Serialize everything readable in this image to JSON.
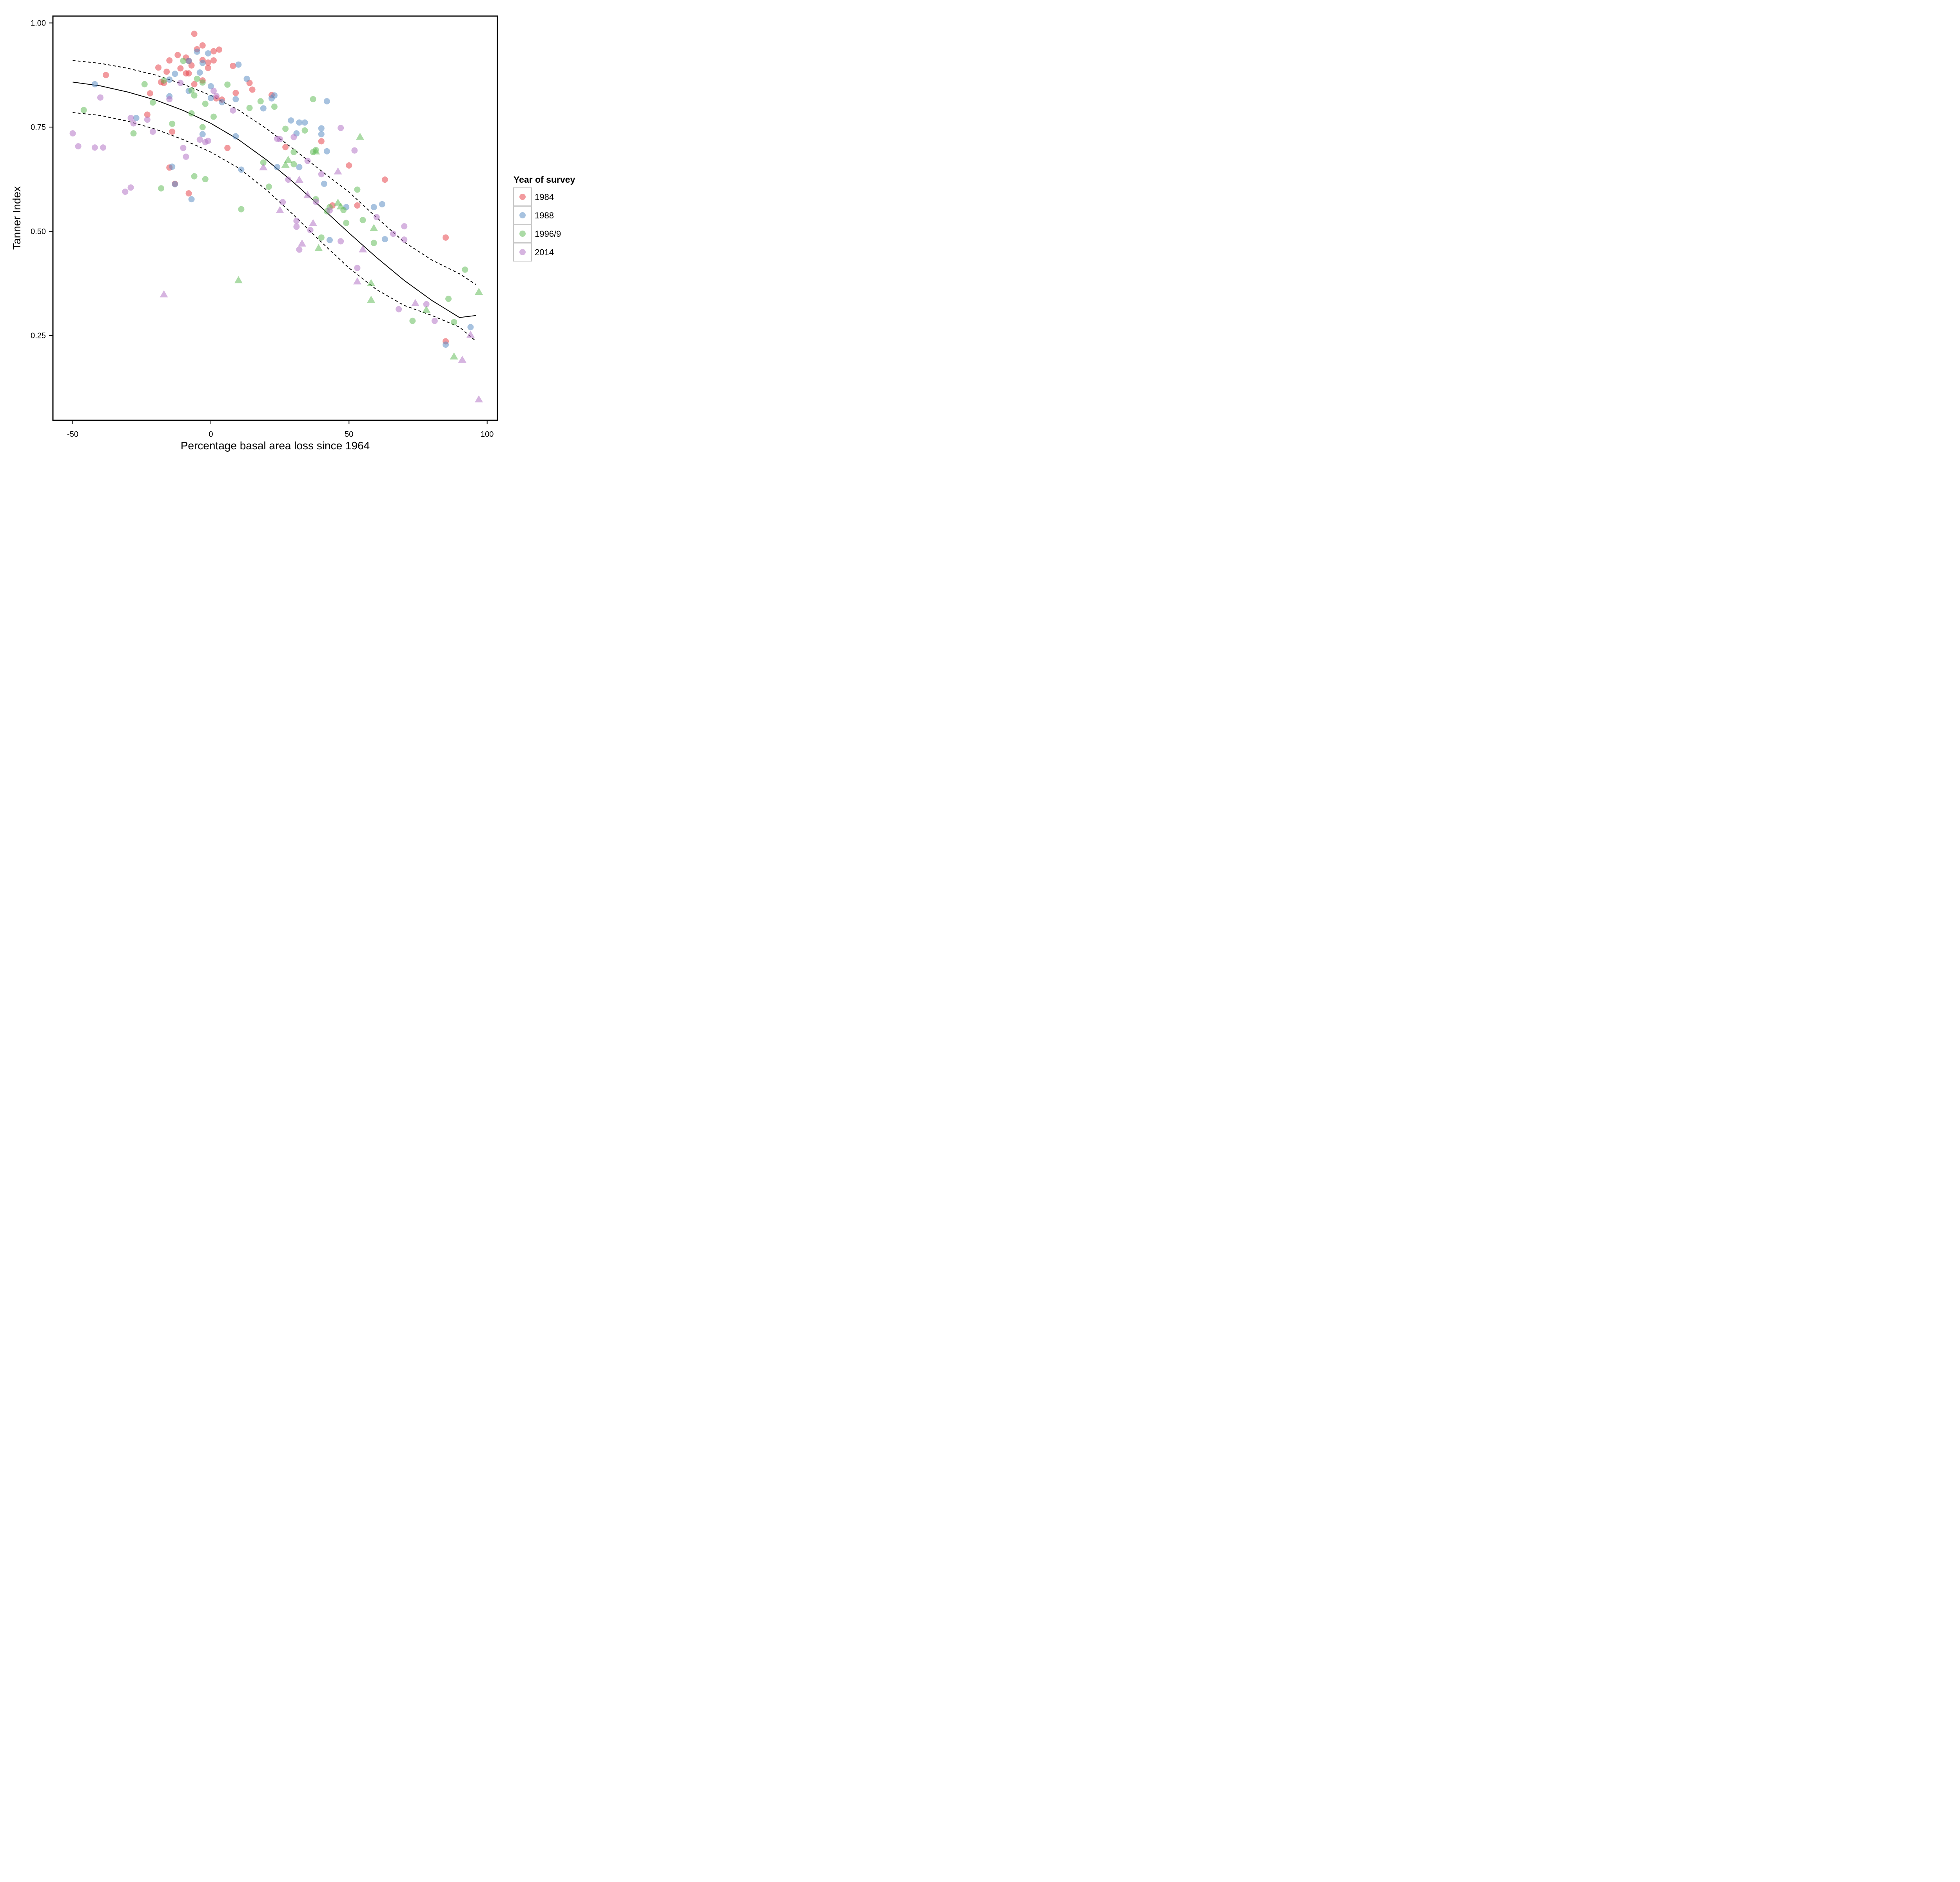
{
  "chart_data": {
    "type": "scatter",
    "title": "",
    "xlabel": "Percentage basal area loss since 1964",
    "ylabel": "Tanner Index",
    "xlim": [
      -57,
      103
    ],
    "ylim": [
      0.07,
      1.04
    ],
    "xticks": [
      -50,
      0,
      50,
      100
    ],
    "xtick_labels": [
      "-50",
      "0",
      "50",
      "100"
    ],
    "yticks": [
      0.25,
      0.5,
      0.75,
      1.0
    ],
    "ytick_labels": [
      "0.25",
      "0.50",
      "0.75",
      "1.00"
    ],
    "grid": false,
    "legend": {
      "title": "Year of survey",
      "position": "right",
      "entries": [
        "1984",
        "1988",
        "1996/9",
        "2014"
      ]
    },
    "colors": {
      "1984": "#e8474e",
      "1988": "#5f8fc4",
      "1996/9": "#66bd5c",
      "2014": "#b476c6"
    },
    "marker_alpha": 0.55,
    "series": [
      {
        "name": "1984",
        "marker": "circle",
        "points": [
          [
            -38,
            0.875
          ],
          [
            -22,
            0.831
          ],
          [
            -23,
            0.78
          ],
          [
            -19,
            0.893
          ],
          [
            -18,
            0.858
          ],
          [
            -17,
            0.856
          ],
          [
            -16,
            0.883
          ],
          [
            -15,
            0.91
          ],
          [
            -14,
            0.739
          ],
          [
            -15,
            0.653
          ],
          [
            -13,
            0.614
          ],
          [
            -12,
            0.923
          ],
          [
            -11,
            0.891
          ],
          [
            -9,
            0.917
          ],
          [
            -9,
            0.879
          ],
          [
            -8,
            0.879
          ],
          [
            -8,
            0.909
          ],
          [
            -7,
            0.898
          ],
          [
            -8,
            0.591
          ],
          [
            -6,
            0.853
          ],
          [
            -6,
            0.974
          ],
          [
            -5,
            0.937
          ],
          [
            -3,
            0.946
          ],
          [
            -3,
            0.911
          ],
          [
            -3,
            0.862
          ],
          [
            -1,
            0.905
          ],
          [
            -1,
            0.892
          ],
          [
            1,
            0.932
          ],
          [
            1,
            0.91
          ],
          [
            2,
            0.819
          ],
          [
            3,
            0.936
          ],
          [
            4,
            0.816
          ],
          [
            6,
            0.7
          ],
          [
            8,
            0.897
          ],
          [
            9,
            0.832
          ],
          [
            14,
            0.856
          ],
          [
            15,
            0.84
          ],
          [
            22,
            0.827
          ],
          [
            27,
            0.702
          ],
          [
            40,
            0.716
          ],
          [
            44,
            0.562
          ],
          [
            50,
            0.658
          ],
          [
            53,
            0.562
          ],
          [
            63,
            0.624
          ],
          [
            85,
            0.485
          ],
          [
            85,
            0.236
          ]
        ]
      },
      {
        "name": "1988",
        "marker": "circle",
        "points": [
          [
            -42,
            0.853
          ],
          [
            -27,
            0.772
          ],
          [
            -15,
            0.864
          ],
          [
            -15,
            0.824
          ],
          [
            -14,
            0.655
          ],
          [
            -13,
            0.878
          ],
          [
            -13,
            0.613
          ],
          [
            -8,
            0.909
          ],
          [
            -8,
            0.837
          ],
          [
            -7,
            0.577
          ],
          [
            -5,
            0.931
          ],
          [
            -4,
            0.881
          ],
          [
            -3,
            0.904
          ],
          [
            -3,
            0.733
          ],
          [
            -1,
            0.927
          ],
          [
            0,
            0.848
          ],
          [
            0,
            0.82
          ],
          [
            4,
            0.81
          ],
          [
            9,
            0.817
          ],
          [
            9,
            0.728
          ],
          [
            10,
            0.9
          ],
          [
            11,
            0.648
          ],
          [
            13,
            0.866
          ],
          [
            19,
            0.795
          ],
          [
            22,
            0.819
          ],
          [
            23,
            0.826
          ],
          [
            24,
            0.654
          ],
          [
            29,
            0.766
          ],
          [
            31,
            0.735
          ],
          [
            32,
            0.761
          ],
          [
            32,
            0.654
          ],
          [
            34,
            0.761
          ],
          [
            40,
            0.747
          ],
          [
            40,
            0.733
          ],
          [
            41,
            0.614
          ],
          [
            42,
            0.812
          ],
          [
            42,
            0.692
          ],
          [
            43,
            0.479
          ],
          [
            49,
            0.558
          ],
          [
            59,
            0.558
          ],
          [
            62,
            0.565
          ],
          [
            63,
            0.481
          ],
          [
            85,
            0.228
          ],
          [
            94,
            0.27
          ]
        ]
      },
      {
        "name": "1996/9",
        "marker": "circle",
        "points": [
          [
            -46,
            0.791
          ],
          [
            -24,
            0.853
          ],
          [
            -28,
            0.735
          ],
          [
            -21,
            0.809
          ],
          [
            -18,
            0.603
          ],
          [
            -17,
            0.862
          ],
          [
            -14,
            0.758
          ],
          [
            -10,
            0.909
          ],
          [
            -7,
            0.838
          ],
          [
            -7,
            0.783
          ],
          [
            -6,
            0.826
          ],
          [
            -6,
            0.632
          ],
          [
            -5,
            0.866
          ],
          [
            -3,
            0.857
          ],
          [
            -3,
            0.75
          ],
          [
            -2,
            0.806
          ],
          [
            -2,
            0.625
          ],
          [
            1,
            0.775
          ],
          [
            6,
            0.852
          ],
          [
            11,
            0.553
          ],
          [
            14,
            0.796
          ],
          [
            18,
            0.812
          ],
          [
            19,
            0.665
          ],
          [
            21,
            0.607
          ],
          [
            23,
            0.799
          ],
          [
            27,
            0.746
          ],
          [
            30,
            0.69
          ],
          [
            30,
            0.661
          ],
          [
            34,
            0.742
          ],
          [
            37,
            0.817
          ],
          [
            37,
            0.69
          ],
          [
            38,
            0.695
          ],
          [
            38,
            0.577
          ],
          [
            40,
            0.485
          ],
          [
            42,
            0.548
          ],
          [
            43,
            0.558
          ],
          [
            48,
            0.551
          ],
          [
            49,
            0.52
          ],
          [
            53,
            0.6
          ],
          [
            55,
            0.527
          ],
          [
            59,
            0.472
          ],
          [
            73,
            0.285
          ],
          [
            86,
            0.338
          ],
          [
            88,
            0.282
          ],
          [
            92,
            0.408
          ]
        ]
      },
      {
        "name": "2014",
        "marker": "circle",
        "points": [
          [
            -50,
            0.735
          ],
          [
            -48,
            0.704
          ],
          [
            -42,
            0.701
          ],
          [
            -40,
            0.821
          ],
          [
            -39,
            0.701
          ],
          [
            -31,
            0.595
          ],
          [
            -29,
            0.772
          ],
          [
            -29,
            0.605
          ],
          [
            -28,
            0.759
          ],
          [
            -23,
            0.768
          ],
          [
            -21,
            0.739
          ],
          [
            -15,
            0.817
          ],
          [
            -11,
            0.856
          ],
          [
            -10,
            0.7
          ],
          [
            -9,
            0.679
          ],
          [
            -4,
            0.72
          ],
          [
            -2,
            0.714
          ],
          [
            -1,
            0.717
          ],
          [
            1,
            0.837
          ],
          [
            2,
            0.825
          ],
          [
            8,
            0.79
          ],
          [
            24,
            0.722
          ],
          [
            25,
            0.721
          ],
          [
            26,
            0.57
          ],
          [
            28,
            0.624
          ],
          [
            30,
            0.726
          ],
          [
            31,
            0.525
          ],
          [
            31,
            0.511
          ],
          [
            32,
            0.456
          ],
          [
            35,
            0.669
          ],
          [
            36,
            0.503
          ],
          [
            38,
            0.571
          ],
          [
            40,
            0.637
          ],
          [
            43,
            0.55
          ],
          [
            47,
            0.748
          ],
          [
            47,
            0.476
          ],
          [
            52,
            0.694
          ],
          [
            53,
            0.412
          ],
          [
            60,
            0.534
          ],
          [
            66,
            0.494
          ],
          [
            68,
            0.313
          ],
          [
            70,
            0.512
          ],
          [
            70,
            0.48
          ],
          [
            78,
            0.325
          ],
          [
            81,
            0.285
          ]
        ]
      },
      {
        "name": "1996/9",
        "marker": "triangle",
        "points": [
          [
            10,
            0.383
          ],
          [
            27,
            0.66
          ],
          [
            28,
            0.672
          ],
          [
            38,
            0.692
          ],
          [
            39,
            0.46
          ],
          [
            46,
            0.569
          ],
          [
            47,
            0.56
          ],
          [
            54,
            0.727
          ],
          [
            58,
            0.376
          ],
          [
            58,
            0.336
          ],
          [
            59,
            0.508
          ],
          [
            78,
            0.312
          ],
          [
            88,
            0.2
          ],
          [
            97,
            0.355
          ]
        ]
      },
      {
        "name": "2014",
        "marker": "triangle",
        "points": [
          [
            -17,
            0.349
          ],
          [
            19,
            0.654
          ],
          [
            25,
            0.551
          ],
          [
            32,
            0.624
          ],
          [
            33,
            0.471
          ],
          [
            35,
            0.587
          ],
          [
            37,
            0.52
          ],
          [
            46,
            0.644
          ],
          [
            53,
            0.38
          ],
          [
            55,
            0.457
          ],
          [
            74,
            0.328
          ],
          [
            91,
            0.192
          ],
          [
            94,
            0.252
          ],
          [
            97,
            0.097
          ]
        ]
      }
    ],
    "fit_lines": [
      {
        "style": "solid",
        "x": [
          -50,
          -40,
          -30,
          -20,
          -10,
          0,
          10,
          20,
          30,
          40,
          50,
          60,
          70,
          80,
          90,
          96
        ],
        "y": [
          0.858,
          0.849,
          0.834,
          0.815,
          0.79,
          0.759,
          0.72,
          0.672,
          0.617,
          0.557,
          0.496,
          0.437,
          0.382,
          0.334,
          0.293,
          0.298
        ]
      },
      {
        "style": "dashed",
        "x": [
          -50,
          -40,
          -30,
          -20,
          -10,
          0,
          10,
          20,
          30,
          40,
          50,
          60,
          70,
          80,
          90,
          96
        ],
        "y": [
          0.91,
          0.903,
          0.891,
          0.875,
          0.853,
          0.826,
          0.791,
          0.747,
          0.697,
          0.645,
          0.594,
          0.533,
          0.474,
          0.431,
          0.398,
          0.372
        ]
      },
      {
        "style": "dashed",
        "x": [
          -50,
          -40,
          -30,
          -20,
          -10,
          0,
          10,
          20,
          30,
          40,
          50,
          60,
          70,
          80,
          90,
          96
        ],
        "y": [
          0.785,
          0.778,
          0.764,
          0.745,
          0.72,
          0.69,
          0.652,
          0.6,
          0.539,
          0.474,
          0.412,
          0.36,
          0.322,
          0.298,
          0.27,
          0.236
        ]
      }
    ]
  }
}
